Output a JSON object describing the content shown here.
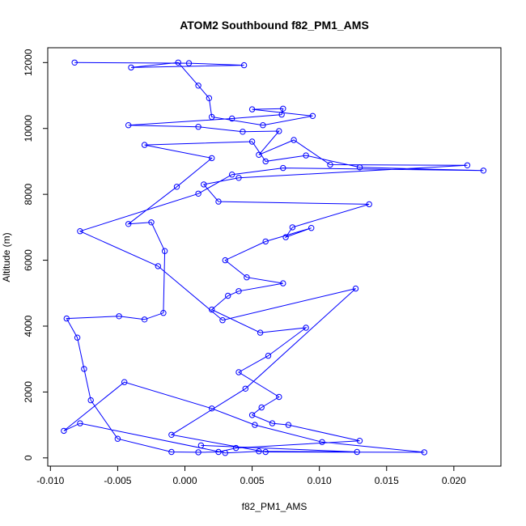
{
  "chart_data": {
    "type": "line",
    "title": "ATOM2 Southbound f82_PM1_AMS",
    "xlabel": "f82_PM1_AMS",
    "ylabel": "Altitude (m)",
    "xlim": [
      -0.0102,
      0.0235
    ],
    "ylim": [
      -250,
      12450
    ],
    "xticks": [
      -0.01,
      -0.005,
      0.0,
      0.005,
      0.01,
      0.015,
      0.02
    ],
    "xtick_labels": [
      "-0.010",
      "-0.005",
      "0.000",
      "0.005",
      "0.010",
      "0.015",
      "0.020"
    ],
    "yticks": [
      0,
      2000,
      4000,
      6000,
      8000,
      10000,
      12000
    ],
    "ytick_labels": [
      "0",
      "2000",
      "4000",
      "6000",
      "8000",
      "10000",
      "12000"
    ],
    "grid": false,
    "series": [
      {
        "line_color": "#0000ff",
        "marker": "open-circle",
        "points": [
          [
            -0.0082,
            12000
          ],
          [
            0.0003,
            11980
          ],
          [
            0.0044,
            11920
          ],
          [
            -0.004,
            11850
          ],
          [
            -0.0005,
            12000
          ],
          [
            0.001,
            11300
          ],
          [
            0.0018,
            10920
          ],
          [
            0.002,
            10350
          ],
          [
            0.0058,
            10100
          ],
          [
            0.0095,
            10380
          ],
          [
            0.005,
            10580
          ],
          [
            0.0073,
            10600
          ],
          [
            0.0072,
            10420
          ],
          [
            0.0035,
            10300
          ],
          [
            -0.0042,
            10100
          ],
          [
            0.001,
            10050
          ],
          [
            0.0043,
            9900
          ],
          [
            0.007,
            9920
          ],
          [
            0.0055,
            9200
          ],
          [
            0.0081,
            9650
          ],
          [
            0.0108,
            8900
          ],
          [
            0.021,
            8880
          ],
          [
            0.004,
            8500
          ],
          [
            0.0014,
            8300
          ],
          [
            0.0025,
            7780
          ],
          [
            0.0137,
            7700
          ],
          [
            0.008,
            7000
          ],
          [
            0.0075,
            6700
          ],
          [
            0.0094,
            6980
          ],
          [
            0.006,
            6570
          ],
          [
            0.003,
            6000
          ],
          [
            0.0046,
            5480
          ],
          [
            0.0073,
            5300
          ],
          [
            0.004,
            5060
          ],
          [
            0.0032,
            4920
          ],
          [
            0.002,
            4500
          ],
          [
            0.0056,
            3800
          ],
          [
            0.009,
            3950
          ],
          [
            0.0062,
            3100
          ],
          [
            0.004,
            2600
          ],
          [
            0.007,
            1850
          ],
          [
            0.0057,
            1530
          ],
          [
            0.005,
            1300
          ],
          [
            0.0065,
            1050
          ],
          [
            0.0077,
            1000
          ],
          [
            0.013,
            520
          ],
          [
            0.0038,
            300
          ],
          [
            0.0025,
            180
          ],
          [
            0.001,
            170
          ],
          [
            -0.001,
            180
          ],
          [
            -0.005,
            580
          ],
          [
            -0.007,
            1750
          ],
          [
            -0.0075,
            2700
          ],
          [
            -0.008,
            3650
          ],
          [
            -0.0088,
            4230
          ],
          [
            -0.0049,
            4300
          ],
          [
            -0.003,
            4200
          ],
          [
            -0.0016,
            4400
          ],
          [
            -0.0015,
            6280
          ],
          [
            -0.0025,
            7150
          ],
          [
            -0.0042,
            7100
          ],
          [
            -0.0006,
            8230
          ],
          [
            0.002,
            9100
          ],
          [
            -0.003,
            9500
          ],
          [
            0.005,
            9600
          ],
          [
            0.006,
            9000
          ],
          [
            0.009,
            9180
          ],
          [
            0.013,
            8820
          ],
          [
            0.0222,
            8720
          ],
          [
            0.0073,
            8800
          ],
          [
            0.0035,
            8600
          ],
          [
            0.001,
            8020
          ],
          [
            -0.0078,
            6880
          ],
          [
            -0.002,
            5820
          ],
          [
            0.0028,
            4180
          ],
          [
            0.0127,
            5140
          ],
          [
            0.0045,
            2100
          ],
          [
            -0.001,
            700
          ],
          [
            0.006,
            180
          ],
          [
            0.0178,
            170
          ],
          [
            0.0102,
            480
          ],
          [
            0.0052,
            1000
          ],
          [
            0.002,
            1500
          ],
          [
            -0.0045,
            2300
          ],
          [
            -0.009,
            820
          ],
          [
            -0.0078,
            1050
          ],
          [
            0.003,
            150
          ],
          [
            0.0055,
            200
          ],
          [
            0.0128,
            180
          ],
          [
            0.0012,
            380
          ]
        ]
      }
    ]
  }
}
